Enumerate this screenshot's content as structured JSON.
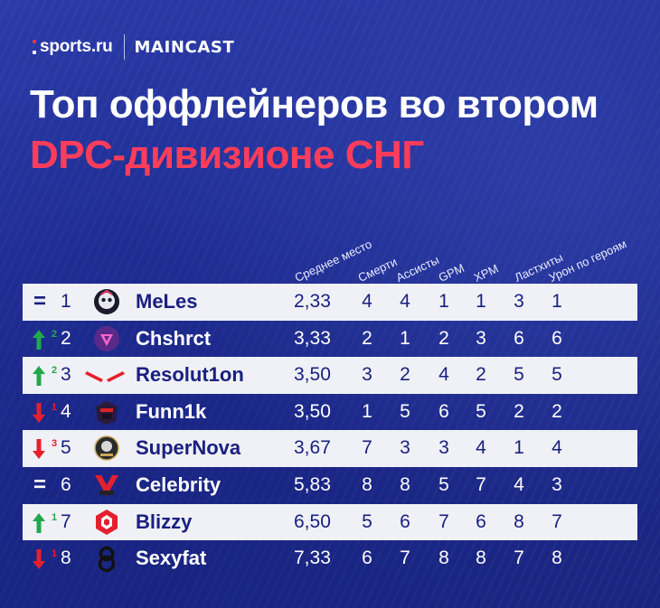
{
  "header": {
    "sports_logo": "sports.ru",
    "maincast_logo": "MAINCAST"
  },
  "title": {
    "line1": "Топ оффлейнеров во втором",
    "line2": "DPC-дивизионе СНГ"
  },
  "columns": [
    "Среднее место",
    "Смерти",
    "Ассисты",
    "GPM",
    "XPM",
    "Ластхиты",
    "Урон по героям"
  ],
  "colors": {
    "up": "#22a84a",
    "down": "#e5202e",
    "accent": "#ff3d5a",
    "background": "#1f2d93"
  },
  "rows": [
    {
      "change": "=",
      "change_num": "",
      "rank": "1",
      "team": "MeLes",
      "avg": "2,33",
      "deaths": "4",
      "assists": "4",
      "gpm": "1",
      "xpm": "1",
      "lasthits": "3",
      "damage": "1"
    },
    {
      "change": "up",
      "change_num": "2",
      "rank": "2",
      "team": "Chshrct",
      "avg": "3,33",
      "deaths": "2",
      "assists": "1",
      "gpm": "2",
      "xpm": "3",
      "lasthits": "6",
      "damage": "6"
    },
    {
      "change": "up",
      "change_num": "2",
      "rank": "3",
      "team": "Resolut1on",
      "avg": "3,50",
      "deaths": "3",
      "assists": "2",
      "gpm": "4",
      "xpm": "2",
      "lasthits": "5",
      "damage": "5"
    },
    {
      "change": "down",
      "change_num": "1",
      "rank": "4",
      "team": "Funn1k",
      "avg": "3,50",
      "deaths": "1",
      "assists": "5",
      "gpm": "6",
      "xpm": "5",
      "lasthits": "2",
      "damage": "2"
    },
    {
      "change": "down",
      "change_num": "3",
      "rank": "5",
      "team": "SuperNova",
      "avg": "3,67",
      "deaths": "7",
      "assists": "3",
      "gpm": "3",
      "xpm": "4",
      "lasthits": "1",
      "damage": "4"
    },
    {
      "change": "=",
      "change_num": "",
      "rank": "6",
      "team": "Celebrity",
      "avg": "5,83",
      "deaths": "8",
      "assists": "8",
      "gpm": "5",
      "xpm": "7",
      "lasthits": "4",
      "damage": "3"
    },
    {
      "change": "up",
      "change_num": "1",
      "rank": "7",
      "team": "Blizzy",
      "avg": "6,50",
      "deaths": "5",
      "assists": "6",
      "gpm": "7",
      "xpm": "6",
      "lasthits": "8",
      "damage": "7"
    },
    {
      "change": "down",
      "change_num": "1",
      "rank": "8",
      "team": "Sexyfat",
      "avg": "7,33",
      "deaths": "6",
      "assists": "7",
      "gpm": "8",
      "xpm": "8",
      "lasthits": "7",
      "damage": "8"
    }
  ],
  "team_logos": [
    "meles-logo",
    "chshrct-logo",
    "resolution-logo",
    "funn1k-logo",
    "supernova-logo",
    "celebrity-logo",
    "blizzy-logo",
    "sexyfat-logo"
  ]
}
